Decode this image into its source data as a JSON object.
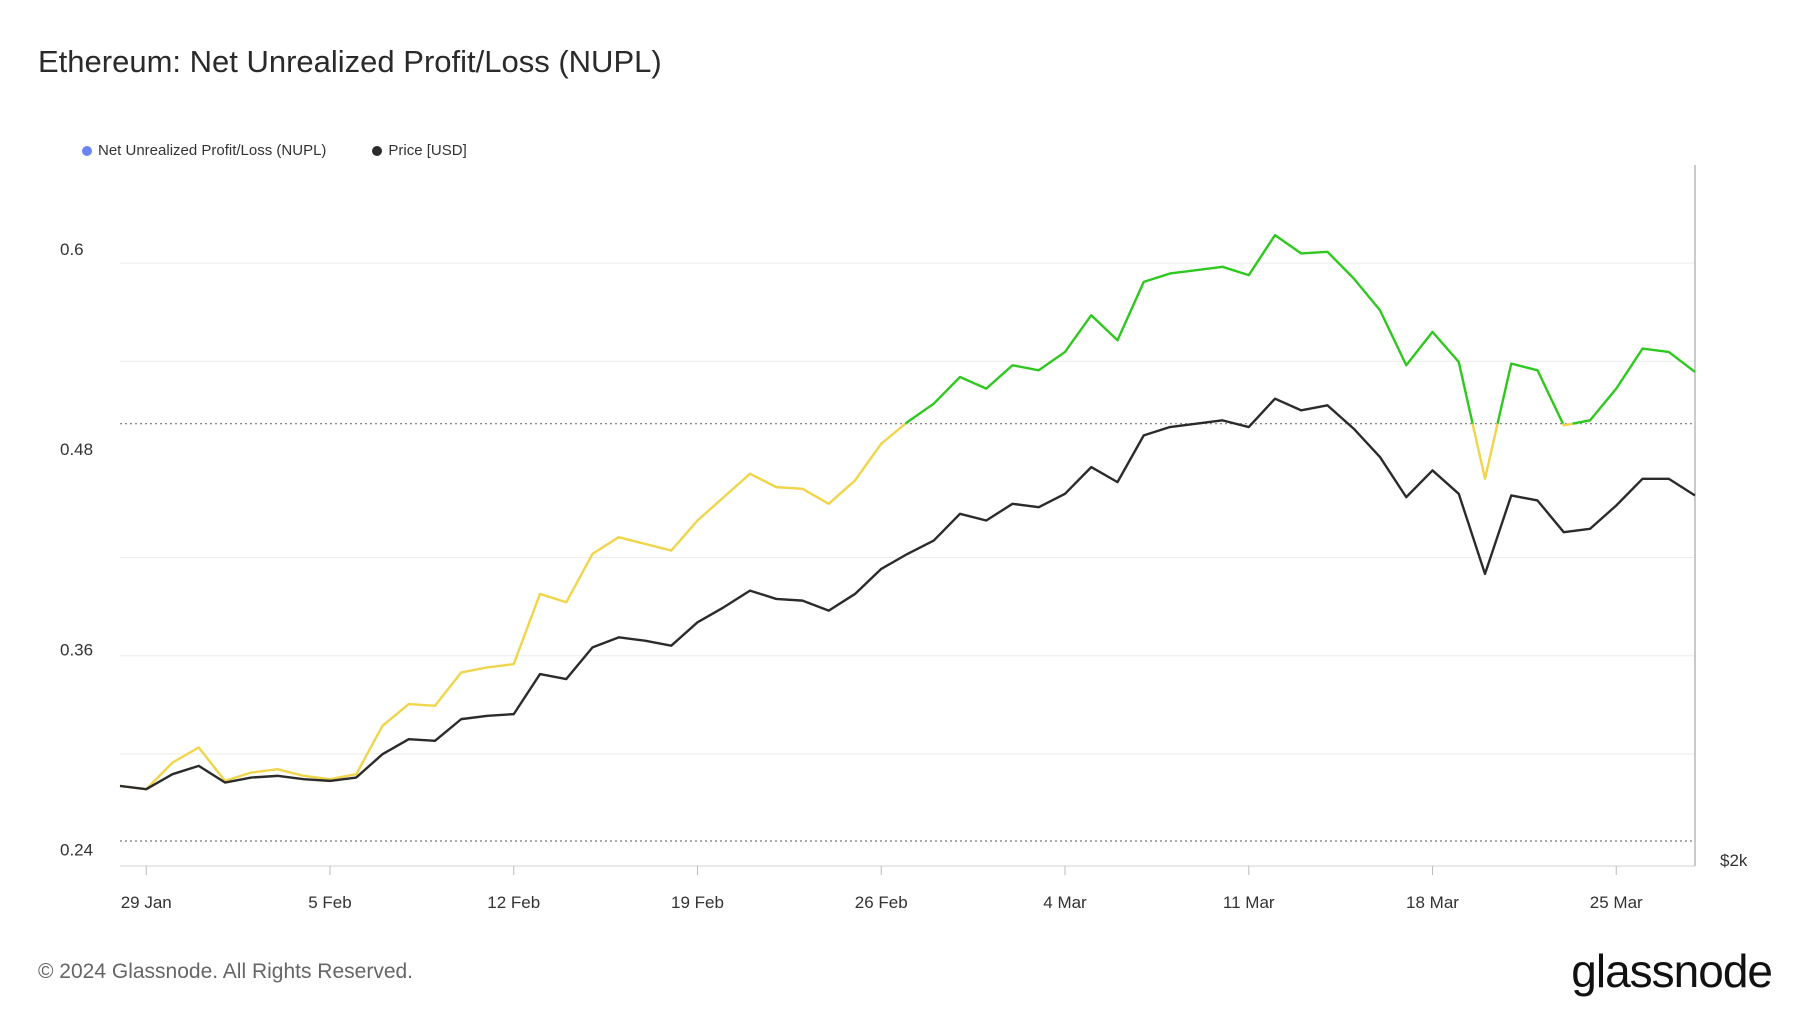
{
  "title": "Ethereum: Net Unrealized Profit/Loss (NUPL)",
  "legend": [
    {
      "label": "Net Unrealized Profit/Loss (NUPL)",
      "color": "#6a85f0"
    },
    {
      "label": "Price [USD]",
      "color": "#2b2b2b"
    }
  ],
  "footer": {
    "copyright": "© 2024 Glassnode. All Rights Reserved.",
    "brand": "glassnode"
  },
  "chart_data": {
    "type": "line",
    "title": "Ethereum: Net Unrealized Profit/Loss (NUPL)",
    "x_start": "2024-01-28",
    "x_tick_labels": [
      "29 Jan",
      "5 Feb",
      "12 Feb",
      "19 Feb",
      "26 Feb",
      "4 Mar",
      "11 Mar",
      "18 Mar",
      "25 Mar"
    ],
    "x_tick_days": [
      1,
      8,
      15,
      22,
      29,
      36,
      43,
      50,
      57
    ],
    "y_tick_labels": [
      "0.6",
      "0.48",
      "0.36",
      "0.24"
    ],
    "y_tick_values": [
      0.6,
      0.48,
      0.36,
      0.24
    ],
    "ylim": [
      0.235,
      0.655
    ],
    "right_axis_label": "$2k",
    "threshold_lines": [
      0.5,
      0.25
    ],
    "color_rule": {
      "below_threshold": "#f0d54a",
      "above_threshold": "#2ec81e",
      "threshold": 0.5
    },
    "series": [
      {
        "name": "Net Unrealized Profit/Loss (NUPL)",
        "values": [
          0.283,
          0.281,
          0.297,
          0.306,
          0.286,
          0.291,
          0.293,
          0.289,
          0.287,
          0.29,
          0.319,
          0.332,
          0.331,
          0.351,
          0.354,
          0.356,
          0.398,
          0.393,
          0.422,
          0.432,
          0.428,
          0.424,
          0.442,
          0.456,
          0.47,
          0.462,
          0.461,
          0.452,
          0.466,
          0.488,
          0.501,
          0.512,
          0.528,
          0.521,
          0.535,
          0.532,
          0.543,
          0.565,
          0.55,
          0.585,
          0.59,
          0.592,
          0.594,
          0.589,
          0.613,
          0.602,
          0.603,
          0.587,
          0.568,
          0.535,
          0.555,
          0.537,
          0.467,
          0.536,
          0.532,
          0.499,
          0.502,
          0.521,
          0.545,
          0.543,
          0.531
        ]
      },
      {
        "name": "Price [USD]",
        "values": [
          0.283,
          0.281,
          0.29,
          0.295,
          0.285,
          0.288,
          0.289,
          0.287,
          0.286,
          0.288,
          0.302,
          0.311,
          0.31,
          0.323,
          0.325,
          0.326,
          0.35,
          0.347,
          0.366,
          0.372,
          0.37,
          0.367,
          0.381,
          0.39,
          0.4,
          0.395,
          0.394,
          0.388,
          0.398,
          0.413,
          0.422,
          0.43,
          0.446,
          0.442,
          0.452,
          0.45,
          0.458,
          0.474,
          0.465,
          0.493,
          0.498,
          0.5,
          0.502,
          0.498,
          0.515,
          0.508,
          0.511,
          0.497,
          0.48,
          0.456,
          0.472,
          0.458,
          0.41,
          0.457,
          0.454,
          0.435,
          0.437,
          0.451,
          0.467,
          0.467,
          0.457
        ]
      }
    ]
  }
}
